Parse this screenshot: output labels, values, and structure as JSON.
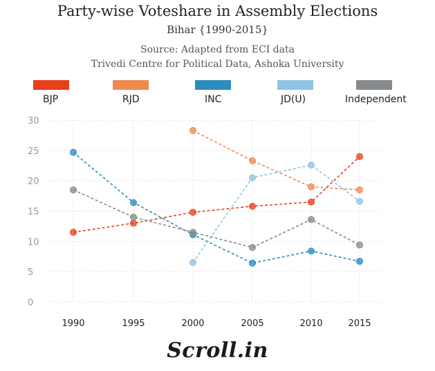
{
  "chart_data": {
    "type": "line",
    "title": "Party-wise Voteshare in Assembly Elections",
    "subtitle": "Bihar {1990-2015}",
    "source_line1": "Source: Adapted from ECI data",
    "source_line2": "Trivedi Centre for Political Data, Ashoka University",
    "x": [
      "1990",
      "1995",
      "2000",
      "2005",
      "2010",
      "2015"
    ],
    "yticks": [
      "0",
      "5",
      "10",
      "15",
      "20",
      "25",
      "30"
    ],
    "ylim": [
      0,
      30
    ],
    "grid": true,
    "legend_position": "top",
    "series": [
      {
        "name": "BJP",
        "color": "#e8401c",
        "values": [
          11.5,
          13.0,
          14.8,
          15.8,
          16.5,
          24.0
        ]
      },
      {
        "name": "RJD",
        "color": "#f0894f",
        "values": [
          null,
          null,
          28.3,
          23.3,
          19.0,
          18.5
        ]
      },
      {
        "name": "INC",
        "color": "#2b8cbe",
        "values": [
          24.7,
          16.4,
          11.1,
          6.4,
          8.4,
          6.7
        ]
      },
      {
        "name": "JD(U)",
        "color": "#8ec4e4",
        "values": [
          null,
          null,
          6.5,
          20.5,
          22.6,
          16.6
        ]
      },
      {
        "name": "Independent",
        "color": "#878a8c",
        "values": [
          18.5,
          14.0,
          11.5,
          9.0,
          13.6,
          9.4
        ]
      }
    ]
  },
  "footer": {
    "logo_text": "Scroll.in"
  }
}
